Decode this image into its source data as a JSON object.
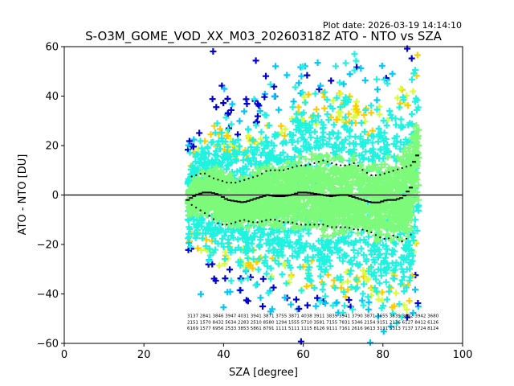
{
  "plot_date": "Plot date: 2026-03-19 14:14:10",
  "chart_data": {
    "type": "scatter",
    "title": "S-O3M_GOME_VOD_XX_M03_20260318Z ATO - NTO vs SZA",
    "xlabel": "SZA [degree]",
    "ylabel": "ATO - NTO [DU]",
    "xlim": [
      0,
      100
    ],
    "ylim": [
      -60,
      60
    ],
    "x_ticks": [
      "0",
      "20",
      "40",
      "60",
      "80",
      "100"
    ],
    "y_ticks": [
      "60",
      "40",
      "20",
      "0",
      "−20",
      "−40",
      "−60"
    ],
    "grid": false,
    "reference_line_y": 0,
    "sza_range": [
      31,
      89
    ],
    "colors": {
      "density_low": "#0000cd",
      "density_mid_low": "#00c8ff",
      "density_mid": "#1ff3e0",
      "density_core": "#7dfa7a",
      "density_mid_high": "#d6ff3a",
      "density_high": "#ffcc00",
      "mean": "#000000",
      "stdev": "#000000"
    },
    "mean_series": {
      "name": "mean",
      "x": [
        31,
        33,
        35,
        37,
        39,
        41,
        43,
        45,
        47,
        49,
        51,
        53,
        55,
        57,
        59,
        61,
        63,
        65,
        67,
        69,
        71,
        73,
        75,
        77,
        79,
        81,
        83,
        85,
        87,
        88
      ],
      "y": [
        -2,
        0,
        1,
        1,
        0,
        -2,
        -2.5,
        -3,
        -2,
        -1,
        0,
        -0.5,
        -0.5,
        0,
        1,
        1,
        0.5,
        0,
        -0.5,
        0,
        0,
        -1,
        -2,
        -3,
        -3,
        -2,
        -2,
        -1,
        3,
        16
      ]
    },
    "upper_stdev_series": {
      "name": "mean + stdev",
      "x": [
        31,
        33,
        35,
        37,
        39,
        41,
        43,
        45,
        47,
        49,
        51,
        53,
        55,
        57,
        59,
        61,
        63,
        65,
        67,
        69,
        71,
        73,
        75,
        77,
        79,
        81,
        83,
        85,
        87
      ],
      "y": [
        7,
        8,
        9,
        7,
        6,
        5,
        5,
        6,
        7,
        8,
        10,
        10,
        10,
        11,
        12,
        12,
        13,
        14,
        13,
        12,
        12,
        13,
        10,
        8,
        8,
        9,
        10,
        11,
        12
      ]
    },
    "lower_stdev_series": {
      "name": "mean - stdev",
      "x": [
        31,
        33,
        35,
        37,
        39,
        41,
        43,
        45,
        47,
        49,
        51,
        53,
        55,
        57,
        59,
        61,
        63,
        65,
        67,
        69,
        71,
        73,
        75,
        77,
        79,
        81,
        83,
        85,
        87
      ],
      "y": [
        -3,
        -5,
        -7,
        -9,
        -12,
        -12,
        -11,
        -10,
        -11,
        -11,
        -10,
        -10,
        -11,
        -11,
        -12,
        -12,
        -12,
        -12,
        -13,
        -13,
        -13,
        -14,
        -14,
        -15,
        -17,
        -18,
        -16,
        -19,
        -16
      ]
    },
    "count_rows": [
      "3137 2841 3846 3947 4031 3941 3871 3755 3871 4038 3911 3839 3941 3790 3871 3655 3839 3682 3942 3680",
      "2151 1570 8432 5634 2283 2510 8580 1294 1555 5710 3581 7155 7831 5346 2154 9151 2136 6127 8412 6126",
      "6169 1577 6956 2533 3853 5861 8791 1111 5111 1115 8126 9111 7161 2616 9613 3131 5313 7137 1724 8124"
    ]
  }
}
